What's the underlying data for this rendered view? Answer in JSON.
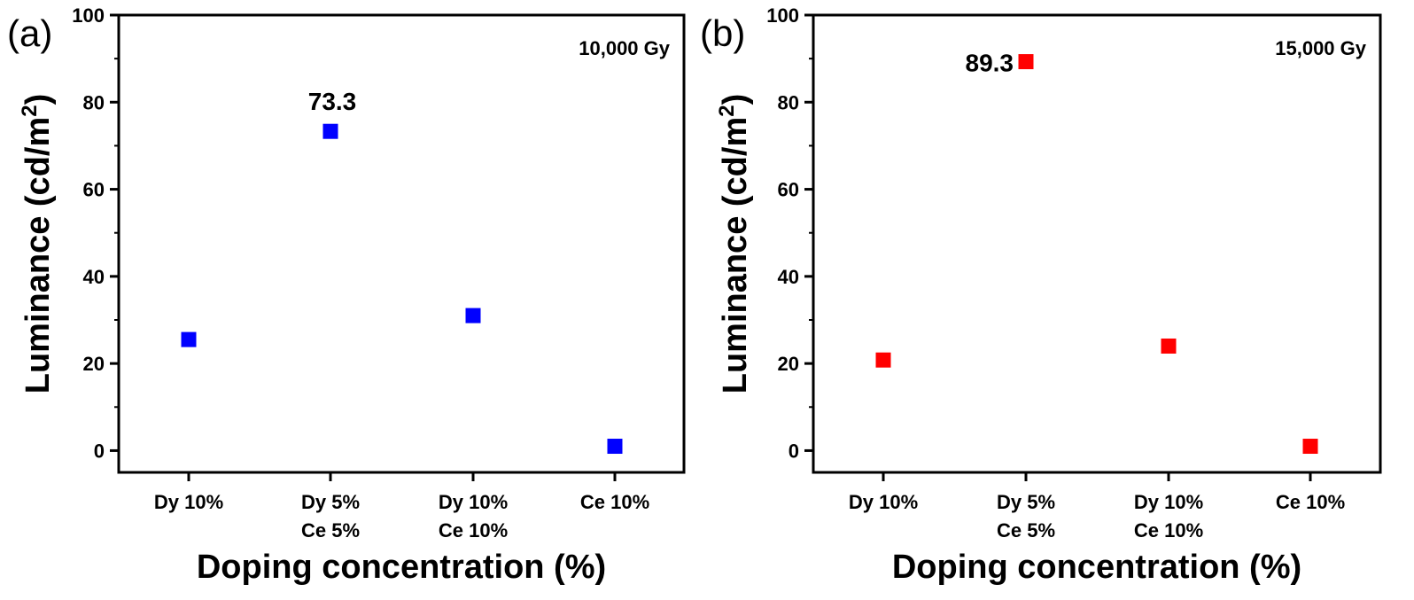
{
  "chart_data": [
    {
      "type": "scatter",
      "panel_label": "(a)",
      "annotation_top_right": "10,000 Gy",
      "categories": [
        [
          "Dy 10%"
        ],
        [
          "Dy 5%",
          "Ce 5%"
        ],
        [
          "Dy 10%",
          "Ce 10%"
        ],
        [
          "Ce 10%"
        ]
      ],
      "values": [
        25.5,
        73.3,
        31,
        1
      ],
      "marker_color": "#0000ff",
      "point_label": {
        "index": 1,
        "text": "73.3",
        "position": "above"
      },
      "ylabel": "Luminance (cd/m",
      "ylabel_superscript": "2",
      "ylabel_suffix": ")",
      "xlabel": "Doping concentration (%)",
      "ylim": [
        -5,
        100
      ],
      "yticks": [
        0,
        20,
        40,
        60,
        80,
        100
      ],
      "ytick_labels": [
        "0",
        "20",
        "40",
        "60",
        "80",
        "100"
      ],
      "grid": false
    },
    {
      "type": "scatter",
      "panel_label": "(b)",
      "annotation_top_right": "15,000 Gy",
      "categories": [
        [
          "Dy 10%"
        ],
        [
          "Dy 5%",
          "Ce 5%"
        ],
        [
          "Dy 10%",
          "Ce 10%"
        ],
        [
          "Ce 10%"
        ]
      ],
      "values": [
        20.8,
        89.3,
        24,
        1
      ],
      "marker_color": "#ff0000",
      "point_label": {
        "index": 1,
        "text": "89.3",
        "position": "left"
      },
      "ylabel": "Luminance (cd/m",
      "ylabel_superscript": "2",
      "ylabel_suffix": ")",
      "xlabel": "Doping concentration (%)",
      "ylim": [
        -5,
        100
      ],
      "yticks": [
        0,
        20,
        40,
        60,
        80,
        100
      ],
      "ytick_labels": [
        "0",
        "20",
        "40",
        "60",
        "80",
        "100"
      ],
      "grid": false
    }
  ]
}
